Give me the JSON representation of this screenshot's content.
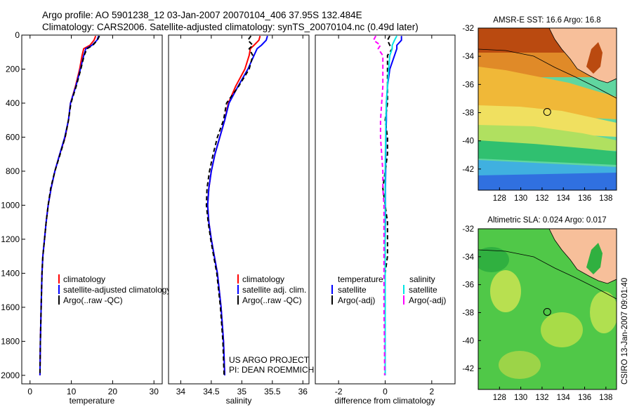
{
  "title": {
    "line1": "Argo profile: AO 5901238_12 03-Jan-2007 20070104_406 37.95S 132.484E",
    "line2": "Climatology: CARS2006. Satellite-adjusted climatology: synTS_20070104.nc (0.49d later)"
  },
  "colors": {
    "climatology": "#ff0000",
    "satellite": "#0000ff",
    "argo": "#000000",
    "sal_satellite": "#00e5e5",
    "sal_argo": "#ff00ff",
    "coast": "#000000",
    "land": "#f7bf9a"
  },
  "chart_data": [
    {
      "id": "temperature",
      "type": "line",
      "xlabel": "temperature",
      "ylabel": "",
      "xlim": [
        -2,
        32
      ],
      "ylim": [
        2050,
        0
      ],
      "xticks": [
        0,
        10,
        20,
        30
      ],
      "yticks": [
        0,
        200,
        400,
        600,
        800,
        1000,
        1200,
        1400,
        1600,
        1800,
        2000
      ],
      "depth": [
        5,
        30,
        60,
        80,
        120,
        200,
        300,
        400,
        500,
        600,
        700,
        800,
        900,
        1000,
        1100,
        1200,
        1300,
        1400,
        1600,
        1800,
        2000
      ],
      "series": [
        {
          "name": "climatology",
          "color_key": "climatology",
          "dash": false,
          "values": [
            15.9,
            15.5,
            14.5,
            13.0,
            12.6,
            12.0,
            11.0,
            9.8,
            9.3,
            8.5,
            7.2,
            6.0,
            5.1,
            4.4,
            3.9,
            3.5,
            3.1,
            2.9,
            2.7,
            2.5,
            2.4
          ]
        },
        {
          "name": "satellite-adjusted climatology",
          "color_key": "satellite",
          "dash": false,
          "values": [
            16.6,
            16.2,
            15.0,
            13.5,
            13.0,
            12.2,
            11.1,
            9.8,
            9.3,
            8.4,
            7.2,
            6.0,
            5.1,
            4.4,
            3.9,
            3.5,
            3.1,
            2.9,
            2.7,
            2.5,
            2.4
          ]
        },
        {
          "name": "Argo(..raw -QC)",
          "color_key": "argo",
          "dash": true,
          "values": [
            16.8,
            16.3,
            15.2,
            13.8,
            13.1,
            12.3,
            11.2,
            9.9,
            9.3,
            8.5,
            7.3,
            6.0,
            5.0,
            4.4,
            3.9,
            3.5,
            3.1,
            2.9,
            2.7,
            2.5,
            2.4
          ]
        }
      ],
      "legend": [
        "climatology",
        "satellite-adjusted climatology",
        "Argo(..raw -QC)"
      ]
    },
    {
      "id": "salinity",
      "type": "line",
      "xlabel": "salinity",
      "ylabel": "",
      "xlim": [
        33.8,
        36.1
      ],
      "ylim": [
        2050,
        0
      ],
      "xticks": [
        34,
        34.5,
        35,
        35.5,
        36
      ],
      "xticklabels": [
        "34",
        "34.5",
        "35",
        "35.5",
        "36"
      ],
      "depth": [
        5,
        30,
        60,
        80,
        120,
        200,
        300,
        400,
        500,
        600,
        700,
        800,
        900,
        1000,
        1100,
        1200,
        1300,
        1400,
        1600,
        1800,
        2000
      ],
      "series": [
        {
          "name": "climatology",
          "color_key": "climatology",
          "dash": false,
          "values": [
            35.3,
            35.28,
            35.2,
            35.14,
            35.12,
            35.05,
            34.9,
            34.78,
            34.72,
            34.64,
            34.56,
            34.5,
            34.46,
            34.44,
            34.46,
            34.5,
            34.55,
            34.6,
            34.66,
            34.7,
            34.72
          ]
        },
        {
          "name": "satellite adj. clim.",
          "color_key": "satellite",
          "dash": false,
          "values": [
            35.42,
            35.4,
            35.32,
            35.25,
            35.2,
            35.1,
            34.94,
            34.79,
            34.72,
            34.64,
            34.56,
            34.5,
            34.46,
            34.44,
            34.46,
            34.5,
            34.55,
            34.6,
            34.66,
            34.7,
            34.72
          ]
        },
        {
          "name": "Argo(..raw -QC)",
          "color_key": "argo",
          "dash": true,
          "values": [
            35.15,
            35.1,
            35.18,
            35.12,
            35.18,
            35.12,
            34.95,
            34.75,
            34.7,
            34.6,
            34.53,
            34.47,
            34.43,
            34.42,
            34.45,
            34.49,
            34.54,
            34.59,
            34.65,
            34.69,
            34.71
          ]
        }
      ],
      "legend": [
        "climatology",
        "satellite adj. clim.",
        "Argo(..raw -QC)"
      ],
      "annotation": [
        "US ARGO PROJECT",
        "PI: DEAN ROEMMICH"
      ]
    },
    {
      "id": "difference",
      "type": "line",
      "xlabel": "difference from climatology",
      "ylabel": "",
      "xlim": [
        -3,
        3
      ],
      "ylim": [
        2050,
        0
      ],
      "xticks": [
        -2,
        0,
        2
      ],
      "depth": [
        5,
        30,
        60,
        80,
        120,
        200,
        300,
        400,
        500,
        600,
        700,
        800,
        900,
        1000,
        1100,
        1200,
        1300,
        1400,
        1600,
        1800,
        2000
      ],
      "series": [
        {
          "name": "temperature satellite",
          "color_key": "satellite",
          "dash": false,
          "values": [
            0.7,
            0.7,
            0.5,
            0.5,
            0.4,
            0.2,
            0.1,
            0.05,
            0.05,
            0.03,
            0.02,
            0.02,
            0.01,
            0.01,
            0.01,
            0.0,
            0.0,
            0.0,
            0.0,
            0.0,
            0.0
          ]
        },
        {
          "name": "temperature Argo(-adj)",
          "color_key": "argo",
          "dash": true,
          "values": [
            0.2,
            0.1,
            0.2,
            0.3,
            0.1,
            0.1,
            0.1,
            0.1,
            0.0,
            0.1,
            0.1,
            0.0,
            -0.1,
            0.0,
            0.1,
            0.1,
            0.1,
            0.0,
            0.0,
            0.0,
            0.0
          ]
        },
        {
          "name": "salinity satellite",
          "color_key": "sal_satellite",
          "dash": false,
          "values": [
            0.5,
            0.4,
            0.3,
            0.3,
            0.2,
            0.15,
            0.1,
            0.05,
            0.03,
            0.02,
            0.01,
            0.0,
            0.0,
            0.0,
            0.0,
            0.0,
            0.0,
            0.0,
            0.0,
            0.0,
            0.0
          ]
        },
        {
          "name": "salinity Argo(-adj)",
          "color_key": "sal_argo",
          "dash": true,
          "values": [
            -0.4,
            -0.5,
            -0.2,
            -0.3,
            -0.1,
            -0.1,
            -0.1,
            -0.15,
            -0.2,
            -0.2,
            -0.15,
            -0.1,
            -0.1,
            -0.05,
            -0.05,
            -0.05,
            -0.05,
            -0.05,
            -0.05,
            -0.03,
            -0.02
          ]
        }
      ],
      "legend_headers": [
        "temperature",
        "salinity"
      ],
      "legend": [
        "satellite",
        "Argo(-adj)",
        "satellite",
        "Argo(-adj)"
      ]
    },
    {
      "id": "sst_map",
      "type": "heatmap",
      "title": "AMSR-E SST: 16.6 Argo: 16.8",
      "xlim": [
        126,
        139
      ],
      "ylim": [
        -43.5,
        -32
      ],
      "xticks": [
        128,
        130,
        132,
        134,
        136,
        138
      ],
      "yticks": [
        -32,
        -34,
        -36,
        -38,
        -40,
        -42
      ],
      "marker": {
        "lon": 132.484,
        "lat": -37.95
      }
    },
    {
      "id": "sla_map",
      "type": "heatmap",
      "title": "Altimetric SLA: 0.024 Argo: 0.017",
      "xlim": [
        126,
        139
      ],
      "ylim": [
        -43.5,
        -32
      ],
      "xticks": [
        128,
        130,
        132,
        134,
        136,
        138
      ],
      "yticks": [
        -32,
        -34,
        -36,
        -38,
        -40,
        -42
      ],
      "marker": {
        "lon": 132.484,
        "lat": -37.95
      }
    }
  ],
  "credit": "CSIRO 13-Jan-2007 09:01:40"
}
